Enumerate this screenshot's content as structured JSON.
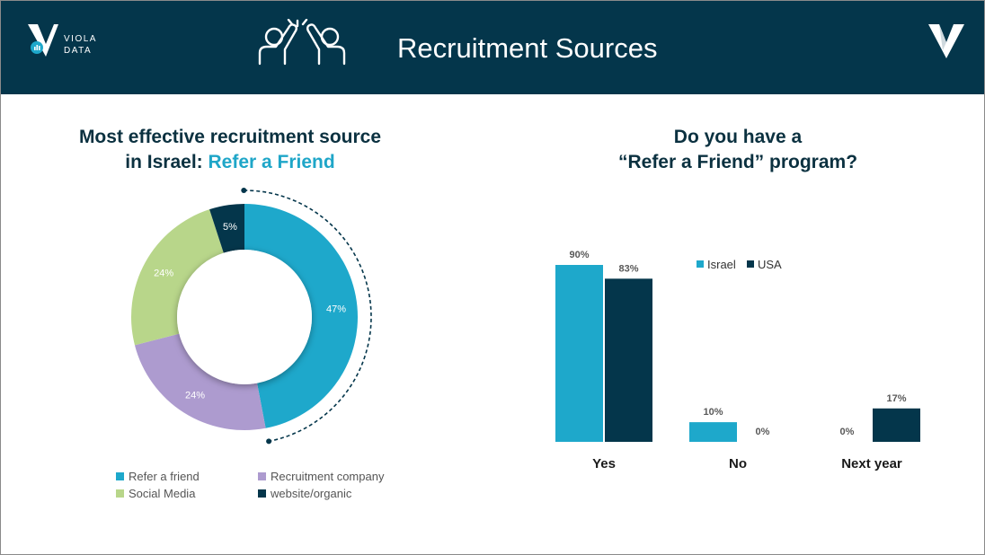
{
  "header": {
    "title": "Recruitment Sources",
    "logo_line1": "VIOLA",
    "logo_line2": "DATA"
  },
  "left_panel": {
    "title_line1": "Most effective recruitment source",
    "title_line2_prefix": "in Israel: ",
    "title_line2_highlight": "Refer a Friend"
  },
  "right_panel": {
    "title_line1": "Do you have a",
    "title_line2": "“Refer a Friend” program?"
  },
  "chart_data": [
    {
      "type": "pie",
      "variant": "donut",
      "title": "",
      "slices": [
        {
          "label": "Refer a friend",
          "value": 47,
          "display": "47%",
          "color": "#1ea8cb"
        },
        {
          "label": "Recruitment company",
          "value": 24,
          "display": "24%",
          "color": "#ad9bcf"
        },
        {
          "label": "Social Media",
          "value": 24,
          "display": "24%",
          "color": "#b8d68a"
        },
        {
          "label": "website/organic",
          "value": 5,
          "display": "5%",
          "color": "#04364b"
        }
      ],
      "legend_position": "bottom"
    },
    {
      "type": "bar",
      "title": "",
      "categories": [
        "Yes",
        "No",
        "Next year"
      ],
      "series": [
        {
          "name": "Israel",
          "values": [
            90,
            10,
            0
          ],
          "labels": [
            "90%",
            "10%",
            "0%"
          ],
          "color": "#1ea8cb"
        },
        {
          "name": "USA",
          "values": [
            83,
            0,
            17
          ],
          "labels": [
            "83%",
            "0%",
            "17%"
          ],
          "color": "#04364b"
        }
      ],
      "ylim": [
        0,
        90
      ],
      "grid": false,
      "legend_position": "top-right"
    }
  ]
}
